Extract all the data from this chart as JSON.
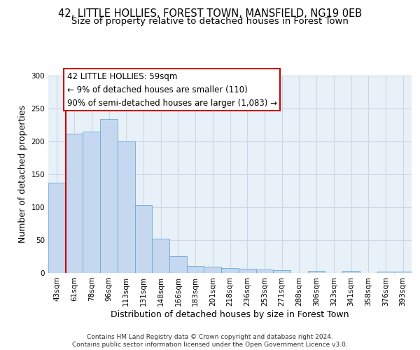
{
  "title_line1": "42, LITTLE HOLLIES, FOREST TOWN, MANSFIELD, NG19 0EB",
  "title_line2": "Size of property relative to detached houses in Forest Town",
  "xlabel": "Distribution of detached houses by size in Forest Town",
  "ylabel": "Number of detached properties",
  "categories": [
    "43sqm",
    "61sqm",
    "78sqm",
    "96sqm",
    "113sqm",
    "131sqm",
    "148sqm",
    "166sqm",
    "183sqm",
    "201sqm",
    "218sqm",
    "236sqm",
    "253sqm",
    "271sqm",
    "288sqm",
    "306sqm",
    "323sqm",
    "341sqm",
    "358sqm",
    "376sqm",
    "393sqm"
  ],
  "values": [
    137,
    211,
    214,
    234,
    200,
    103,
    52,
    25,
    11,
    10,
    7,
    6,
    5,
    4,
    0,
    3,
    0,
    3,
    0,
    2,
    2
  ],
  "bar_color": "#c5d8f0",
  "bar_edge_color": "#6aaad4",
  "plot_bg": "#e8f0f8",
  "grid_color": "#ccd8e8",
  "background_color": "#ffffff",
  "annotation_text": "42 LITTLE HOLLIES: 59sqm\n← 9% of detached houses are smaller (110)\n90% of semi-detached houses are larger (1,083) →",
  "annotation_box_color": "#ffffff",
  "annotation_box_edge": "#cc0000",
  "vline_color": "#cc0000",
  "ylim": [
    0,
    300
  ],
  "yticks": [
    0,
    50,
    100,
    150,
    200,
    250,
    300
  ],
  "footer": "Contains HM Land Registry data © Crown copyright and database right 2024.\nContains public sector information licensed under the Open Government Licence v3.0.",
  "title_fontsize": 10.5,
  "subtitle_fontsize": 9.5,
  "axis_label_fontsize": 9,
  "tick_fontsize": 7.5,
  "annotation_fontsize": 8.5,
  "footer_fontsize": 6.5
}
